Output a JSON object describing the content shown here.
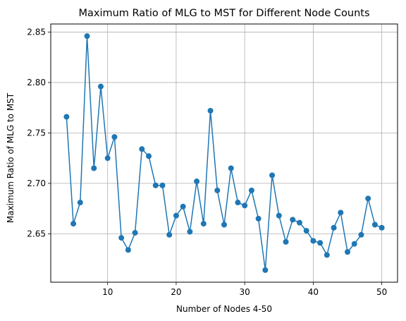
{
  "chart_data": {
    "type": "line",
    "title": "Maximum Ratio of MLG to MST for Different Node Counts",
    "xlabel": "Number of Nodes 4-50",
    "ylabel": "Maximum Ratio of MLG to MST",
    "xlim": [
      1.7,
      52.3
    ],
    "ylim": [
      2.602,
      2.858
    ],
    "xticks": [
      10,
      20,
      30,
      40,
      50
    ],
    "yticks": [
      2.65,
      2.7,
      2.75,
      2.8,
      2.85
    ],
    "ytick_labels": [
      "2.65",
      "2.70",
      "2.75",
      "2.80",
      "2.85"
    ],
    "grid": true,
    "marker": "circle",
    "color": "#1f77b4",
    "series": [
      {
        "x": [
          4,
          5,
          6,
          7,
          8,
          9,
          10,
          11,
          12,
          13,
          14,
          15,
          16,
          17,
          18,
          19,
          20,
          21,
          22,
          23,
          24,
          25,
          26,
          27,
          28,
          29,
          30,
          31,
          32,
          33,
          34,
          35,
          36,
          37,
          38,
          39,
          40,
          41,
          42,
          43,
          44,
          45,
          46,
          47,
          48,
          49,
          50
        ],
        "values": [
          2.766,
          2.66,
          2.681,
          2.846,
          2.715,
          2.796,
          2.725,
          2.746,
          2.646,
          2.634,
          2.651,
          2.734,
          2.727,
          2.698,
          2.698,
          2.649,
          2.668,
          2.677,
          2.652,
          2.702,
          2.66,
          2.772,
          2.693,
          2.659,
          2.715,
          2.681,
          2.678,
          2.693,
          2.665,
          2.614,
          2.708,
          2.668,
          2.642,
          2.664,
          2.661,
          2.653,
          2.643,
          2.641,
          2.629,
          2.656,
          2.671,
          2.632,
          2.64,
          2.649,
          2.685,
          2.659,
          2.656
        ]
      }
    ]
  }
}
